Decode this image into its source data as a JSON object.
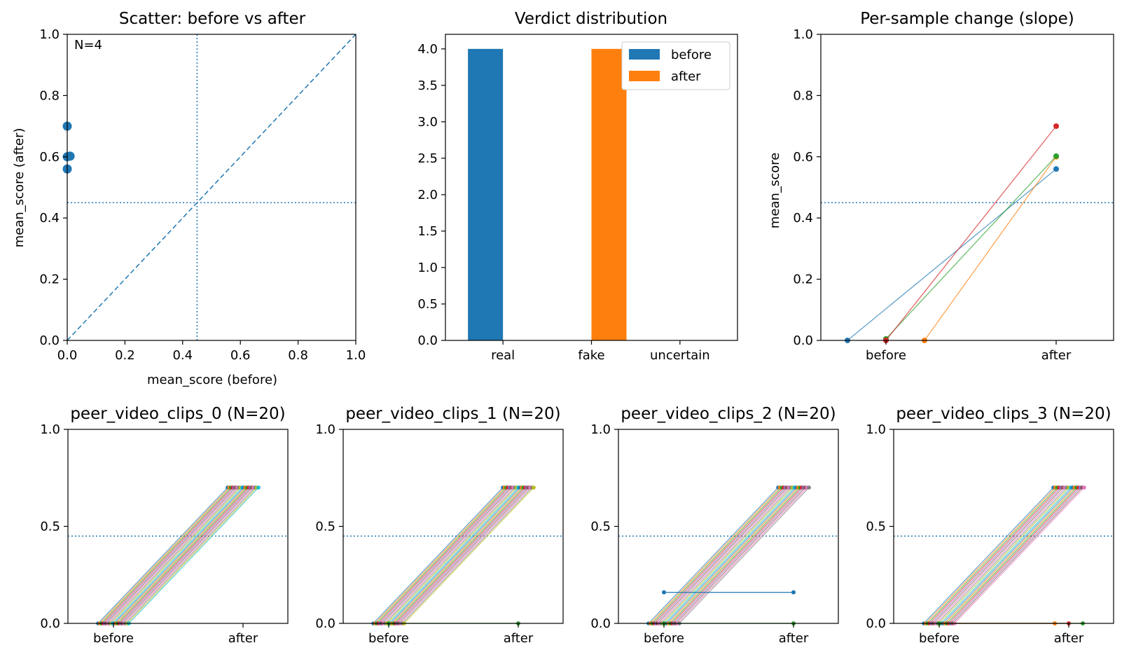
{
  "colors": {
    "blue": "#1f77b4",
    "orange": "#ff7f0e",
    "green": "#2ca02c",
    "red": "#d62728",
    "purple": "#9467bd",
    "brown": "#8c564b",
    "pink": "#e377c2",
    "gray": "#7f7f7f",
    "olive": "#bcbd22",
    "cyan": "#17becf"
  },
  "chart_data": [
    {
      "type": "scatter",
      "title": "Scatter: before vs after",
      "xlabel": "mean_score (before)",
      "ylabel": "mean_score (after)",
      "xlim": [
        0,
        1
      ],
      "ylim": [
        0,
        1
      ],
      "x_ticks": [
        "0.0",
        "0.2",
        "0.4",
        "0.6",
        "0.8",
        "1.0"
      ],
      "y_ticks": [
        "0.0",
        "0.2",
        "0.4",
        "0.6",
        "0.8",
        "1.0"
      ],
      "annotation": "N=4",
      "threshold": 0.45,
      "diagonal": true,
      "points": [
        {
          "x": 0.0,
          "y": 0.7
        },
        {
          "x": 0.0,
          "y": 0.6
        },
        {
          "x": 0.01,
          "y": 0.602
        },
        {
          "x": 0.0,
          "y": 0.56
        }
      ]
    },
    {
      "type": "bar",
      "title": "Verdict distribution",
      "categories": [
        "real",
        "fake",
        "uncertain"
      ],
      "series": [
        {
          "name": "before",
          "values": [
            4,
            0,
            0
          ],
          "color": "#1f77b4"
        },
        {
          "name": "after",
          "values": [
            0,
            4,
            0
          ],
          "color": "#ff7f0e"
        }
      ],
      "ylim": [
        0,
        4.2
      ],
      "y_ticks": [
        "0.0",
        "0.5",
        "1.0",
        "1.5",
        "2.0",
        "2.5",
        "3.0",
        "3.5",
        "4.0"
      ],
      "legend": "top-right"
    },
    {
      "type": "line",
      "title": "Per-sample change (slope)",
      "ylabel": "mean_score",
      "categories": [
        "before",
        "after"
      ],
      "ylim": [
        0,
        1
      ],
      "y_ticks": [
        "0.0",
        "0.2",
        "0.4",
        "0.6",
        "0.8",
        "1.0"
      ],
      "threshold": 0.45,
      "series": [
        {
          "values": [
            0.0,
            0.56
          ]
        },
        {
          "values": [
            0.0,
            0.6
          ]
        },
        {
          "values": [
            0.005,
            0.602
          ]
        },
        {
          "values": [
            0.0,
            0.7
          ]
        }
      ]
    },
    {
      "type": "line",
      "title": "peer_video_clips_0 (N=20)",
      "categories": [
        "before",
        "after"
      ],
      "ylim": [
        0,
        1
      ],
      "y_ticks": [
        "0.0",
        "0.5",
        "1.0"
      ],
      "threshold": 0.45,
      "series_summary": "20 samples: all before = 0.0, all after = 0.70"
    },
    {
      "type": "line",
      "title": "peer_video_clips_1 (N=20)",
      "categories": [
        "before",
        "after"
      ],
      "ylim": [
        0,
        1
      ],
      "y_ticks": [
        "0.0",
        "0.5",
        "1.0"
      ],
      "threshold": 0.45,
      "series_summary": "19 samples: before = 0.0, after = 0.70; 1 sample: before = 0.0, after = 0.0"
    },
    {
      "type": "line",
      "title": "peer_video_clips_2 (N=20)",
      "categories": [
        "before",
        "after"
      ],
      "ylim": [
        0,
        1
      ],
      "y_ticks": [
        "0.0",
        "0.5",
        "1.0"
      ],
      "threshold": 0.45,
      "series_summary": "18 samples: before = 0.0, after = 0.70; 1 sample: 0.16 -> 0.16; 1 sample: 0.0 -> 0.0"
    },
    {
      "type": "line",
      "title": "peer_video_clips_3 (N=20)",
      "categories": [
        "before",
        "after"
      ],
      "ylim": [
        0,
        1
      ],
      "y_ticks": [
        "0.0",
        "0.5",
        "1.0"
      ],
      "threshold": 0.45,
      "series_summary": "17 samples: before = 0.0, after = 0.70; 3 samples: 0.0 -> 0.0"
    }
  ]
}
